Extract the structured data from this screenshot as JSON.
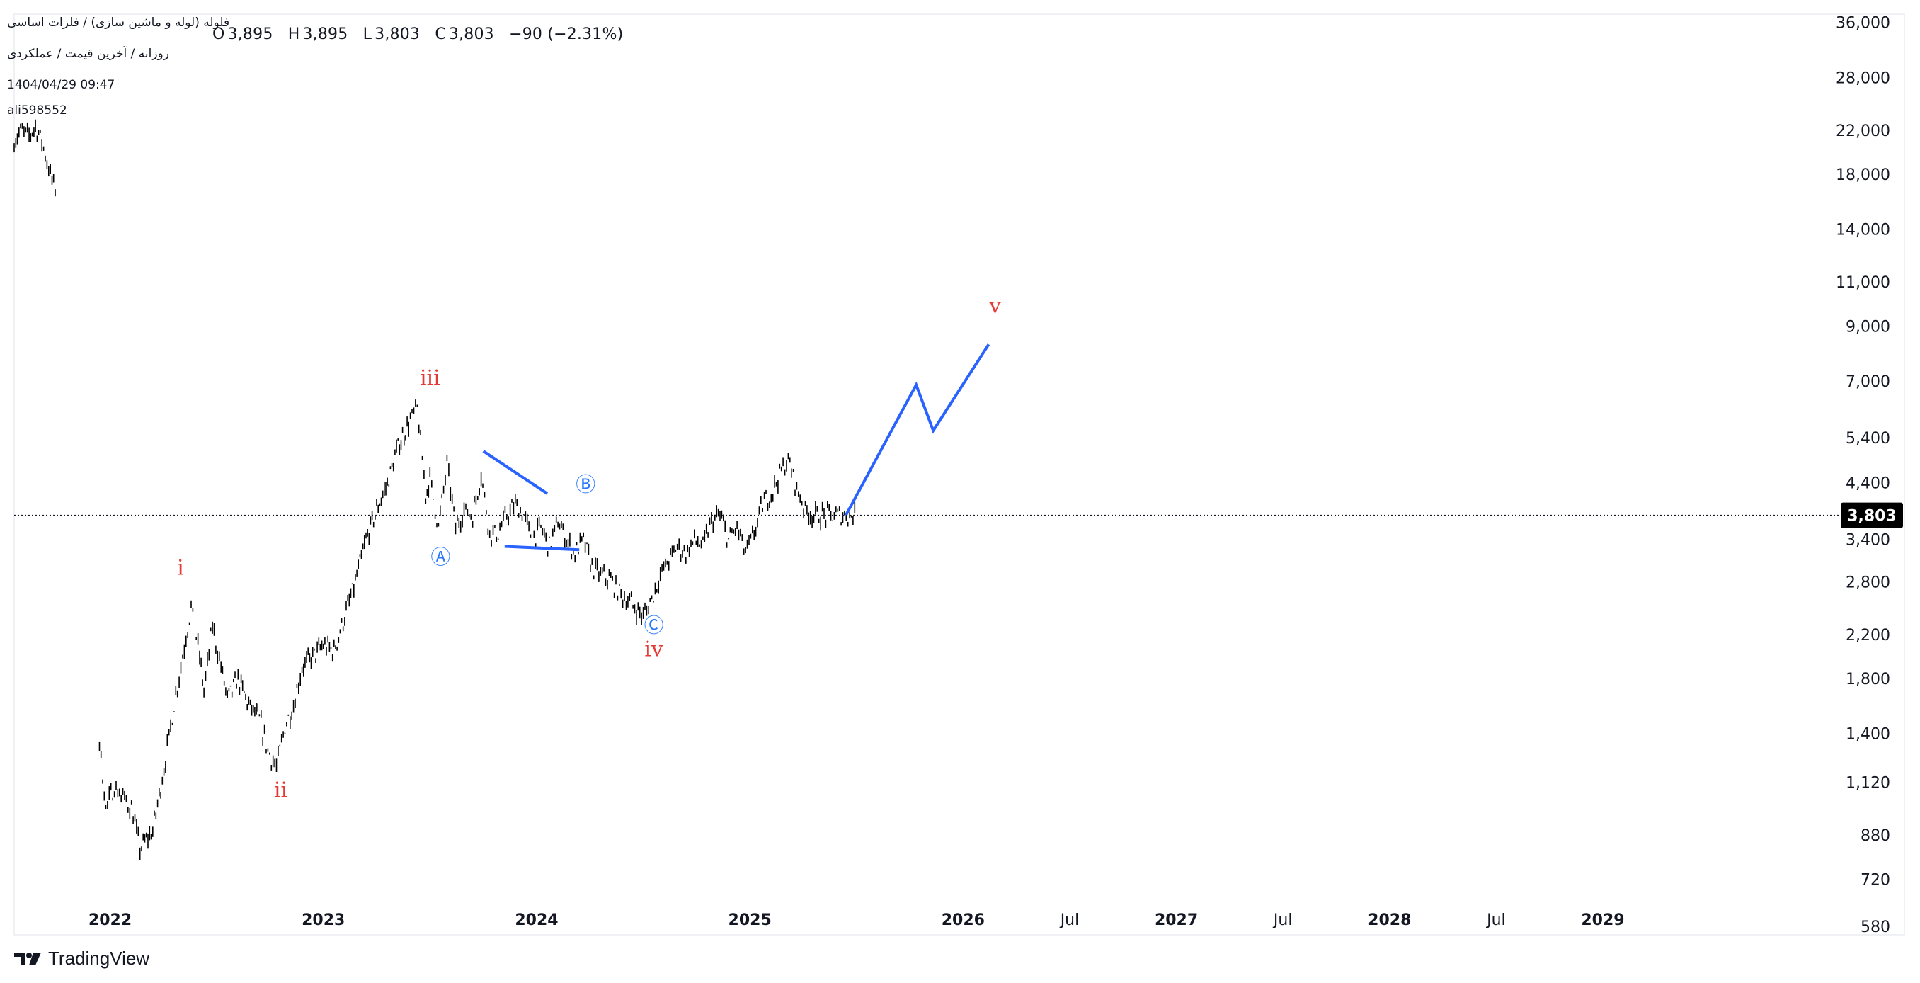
{
  "header": {
    "symbol_title": "فلوله (لوله و ماشین سازی) / فلزات اساسی",
    "ohlc": {
      "o_label": "O",
      "o_value": "3,895",
      "h_label": "H",
      "h_value": "3,895",
      "l_label": "L",
      "l_value": "3,803",
      "c_label": "C",
      "c_value": "3,803",
      "change": "−90 (−2.31%)"
    },
    "timeframe_line": "روزانه / آخرین قیمت / عملکردی",
    "timestamp": "1404/04/29 09:47",
    "author": "ali598552"
  },
  "brand": {
    "name": "TradingView",
    "color": "#131722"
  },
  "colors": {
    "candle": "#000000",
    "wave_label": "#e53935",
    "sub_wave_label": "#2979ff",
    "projection": "#2962ff",
    "price_badge_bg": "#000000",
    "price_badge_text": "#ffffff",
    "axis_text": "#131722",
    "grid_border": "#e0e3eb"
  },
  "chart_data": {
    "type": "line",
    "scale": "logarithmic",
    "title": "فلوله (لوله و ماشین سازی) / فلزات اساسی",
    "x_axis": {
      "ticks": [
        "2022",
        "2023",
        "2024",
        "2025",
        "2026",
        "Jul",
        "2027",
        "Jul",
        "2028",
        "Jul",
        "2029"
      ],
      "range": [
        2021.55,
        2029.85
      ]
    },
    "y_axis": {
      "ticks": [
        580,
        720,
        880,
        1120,
        1400,
        1800,
        2200,
        2800,
        3400,
        4400,
        5400,
        7000,
        9000,
        11000,
        14000,
        18000,
        22000,
        28000,
        36000
      ],
      "tick_labels": [
        "580",
        "720",
        "880",
        "1,120",
        "1,400",
        "1,800",
        "2,200",
        "2,800",
        "3,400",
        "4,400",
        "5,400",
        "7,000",
        "9,000",
        "11,000",
        "14,000",
        "18,000",
        "22,000",
        "28,000",
        "36,000"
      ],
      "range": [
        560,
        37500
      ]
    },
    "last_price": {
      "value": 3803,
      "label": "3,803"
    },
    "series": [
      {
        "name": "price_early",
        "x": [
          2021.55,
          2021.58,
          2021.62,
          2021.65,
          2021.68,
          2021.72,
          2021.75
        ],
        "values": [
          21000,
          22000,
          21500,
          22500,
          21000,
          18000,
          16500
        ]
      },
      {
        "name": "price",
        "x": [
          2021.95,
          2021.98,
          2022.02,
          2022.06,
          2022.1,
          2022.14,
          2022.2,
          2022.26,
          2022.3,
          2022.34,
          2022.38,
          2022.42,
          2022.44,
          2022.48,
          2022.52,
          2022.55,
          2022.6,
          2022.65,
          2022.7,
          2022.74,
          2022.78,
          2022.82,
          2022.86,
          2022.9,
          2022.95,
          2023.0,
          2023.05,
          2023.1,
          2023.15,
          2023.2,
          2023.25,
          2023.3,
          2023.35,
          2023.4,
          2023.44,
          2023.48,
          2023.5,
          2023.54,
          2023.58,
          2023.62,
          2023.66,
          2023.7,
          2023.74,
          2023.78,
          2023.82,
          2023.86,
          2023.9,
          2023.94,
          2023.98,
          2024.02,
          2024.06,
          2024.1,
          2024.14,
          2024.18,
          2024.22,
          2024.26,
          2024.3,
          2024.34,
          2024.38,
          2024.42,
          2024.46,
          2024.5,
          2024.54,
          2024.58,
          2024.62,
          2024.66,
          2024.7,
          2024.74,
          2024.78,
          2024.82,
          2024.86,
          2024.9,
          2024.94,
          2024.98,
          2025.02,
          2025.06,
          2025.1,
          2025.14,
          2025.18,
          2025.22,
          2025.26,
          2025.3,
          2025.34,
          2025.38,
          2025.42,
          2025.46,
          2025.5
        ],
        "values": [
          1350,
          1000,
          1100,
          1050,
          1000,
          830,
          900,
          1250,
          1600,
          2000,
          2500,
          2000,
          1700,
          2300,
          1900,
          1650,
          1800,
          1600,
          1500,
          1300,
          1200,
          1450,
          1600,
          1900,
          2000,
          2100,
          2050,
          2400,
          2800,
          3400,
          3900,
          4400,
          5200,
          5800,
          6200,
          4200,
          4500,
          3600,
          4800,
          3600,
          3900,
          3800,
          4600,
          3500,
          3500,
          3800,
          4000,
          3800,
          3400,
          3600,
          3300,
          3700,
          3400,
          3200,
          3400,
          3000,
          2900,
          2850,
          2700,
          2600,
          2500,
          2400,
          2600,
          2900,
          3100,
          3300,
          3200,
          3400,
          3300,
          3700,
          3800,
          3400,
          3600,
          3200,
          3500,
          4000,
          4200,
          4600,
          4900,
          4300,
          3900,
          3803,
          3803,
          3803,
          3803,
          3803,
          3803
        ]
      },
      {
        "name": "projection",
        "x": [
          2025.45,
          2025.78,
          2025.86,
          2026.12
        ],
        "values": [
          3803,
          6900,
          5600,
          8300
        ]
      }
    ],
    "annotations": [
      {
        "text": "i",
        "x": 2022.33,
        "y": 2900,
        "color": "red"
      },
      {
        "text": "ii",
        "x": 2022.8,
        "y": 1050,
        "color": "red"
      },
      {
        "text": "iii",
        "x": 2023.5,
        "y": 6900,
        "color": "red"
      },
      {
        "text": "iv",
        "x": 2024.55,
        "y": 2000,
        "color": "red"
      },
      {
        "text": "v",
        "x": 2026.15,
        "y": 9600,
        "color": "red"
      },
      {
        "text": "Ⓐ",
        "x": 2023.55,
        "y": 3050,
        "color": "blue"
      },
      {
        "text": "Ⓑ",
        "x": 2024.23,
        "y": 4250,
        "color": "blue"
      },
      {
        "text": "Ⓒ",
        "x": 2024.55,
        "y": 2230,
        "color": "blue"
      }
    ],
    "trendlines": [
      {
        "x": [
          2023.75,
          2024.05
        ],
        "values": [
          5100,
          4200
        ]
      },
      {
        "x": [
          2023.85,
          2024.2
        ],
        "values": [
          3300,
          3250
        ]
      }
    ]
  }
}
